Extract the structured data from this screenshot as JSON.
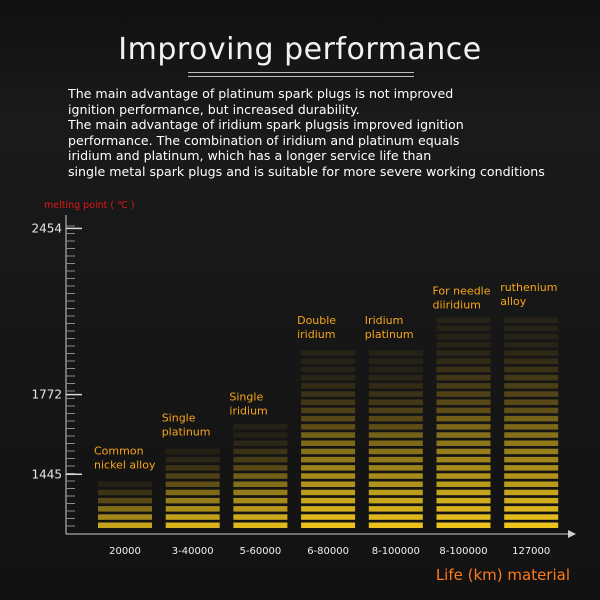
{
  "title": "Improving performance",
  "description_lines": [
    "The main advantage of platinum spark plugs is not improved",
    "ignition performance, but increased durability.",
    "The main advantage of iridium spark plugsis improved ignition",
    "performance. The combination of iridium and platinum equals",
    "iridium and platinum, which has a longer service life than",
    "single metal spark plugs and is suitable for more severe working conditions"
  ],
  "colors": {
    "title": "#f2f2f2",
    "ylabel": "#e01818",
    "xlabel": "#ff7a1a",
    "bar_label": "#f6a51a",
    "bar_bright": "#ffd21f",
    "bar_dim": "#6b5a18"
  },
  "chart_data": {
    "type": "bar",
    "ylabel": "melting point ( ℃ )",
    "xlabel": "Life (km) material",
    "ylim": [
      1200,
      2550
    ],
    "yticks": [
      1445,
      1772,
      2454
    ],
    "categories": [
      "20000",
      "3-40000",
      "5-60000",
      "6-80000",
      "8-100000",
      "8-100000",
      "127000"
    ],
    "series": [
      {
        "name": "material",
        "labels": [
          [
            "Common",
            "nickel alloy"
          ],
          [
            "Single",
            "platinum"
          ],
          [
            "Single",
            "iridium"
          ],
          [
            "Double",
            "iridium"
          ],
          [
            "Iridium",
            "platinum"
          ],
          [
            "For needle",
            "diiridium"
          ],
          [
            "ruthenium",
            "alloy"
          ]
        ],
        "values": [
          1445,
          1580,
          1665,
          1980,
          1980,
          2100,
          2115
        ]
      }
    ],
    "grid": false
  }
}
